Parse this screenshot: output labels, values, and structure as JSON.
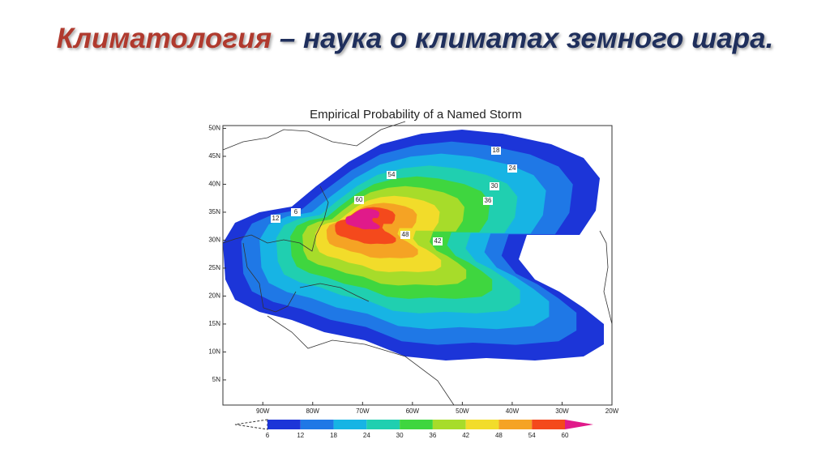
{
  "header": {
    "title_term": "Климатология",
    "title_rest": "– наука о климатах земного шара."
  },
  "map": {
    "title": "Empirical Probability of a Named Storm",
    "xlim": [
      -98,
      -20
    ],
    "ylim": [
      0.5,
      50.5
    ],
    "xticks": [
      {
        "value": -90,
        "label": "90W"
      },
      {
        "value": -80,
        "label": "80W"
      },
      {
        "value": -70,
        "label": "70W"
      },
      {
        "value": -60,
        "label": "60W"
      },
      {
        "value": -50,
        "label": "50W"
      },
      {
        "value": -40,
        "label": "40W"
      },
      {
        "value": -30,
        "label": "30W"
      },
      {
        "value": -20,
        "label": "20W"
      }
    ],
    "yticks": [
      {
        "value": 5,
        "label": "5N"
      },
      {
        "value": 10,
        "label": "10N"
      },
      {
        "value": 15,
        "label": "15N"
      },
      {
        "value": 20,
        "label": "20N"
      },
      {
        "value": 25,
        "label": "25N"
      },
      {
        "value": 30,
        "label": "30N"
      },
      {
        "value": 35,
        "label": "35N"
      },
      {
        "value": 40,
        "label": "40N"
      },
      {
        "value": 45,
        "label": "45N"
      },
      {
        "value": 50,
        "label": "50N"
      }
    ],
    "colorbar": {
      "levels": [
        6,
        12,
        18,
        24,
        30,
        36,
        42,
        48,
        54,
        60
      ],
      "colors": [
        "#1c35d8",
        "#1f78e6",
        "#17b4e4",
        "#20cfb0",
        "#3fd63f",
        "#a7dc2a",
        "#f2dc2a",
        "#f5a324",
        "#f4491c",
        "#e01a8a"
      ]
    },
    "contour_labels": [
      "6",
      "12",
      "18",
      "24",
      "30",
      "36",
      "42",
      "48",
      "54",
      "60"
    ]
  }
}
